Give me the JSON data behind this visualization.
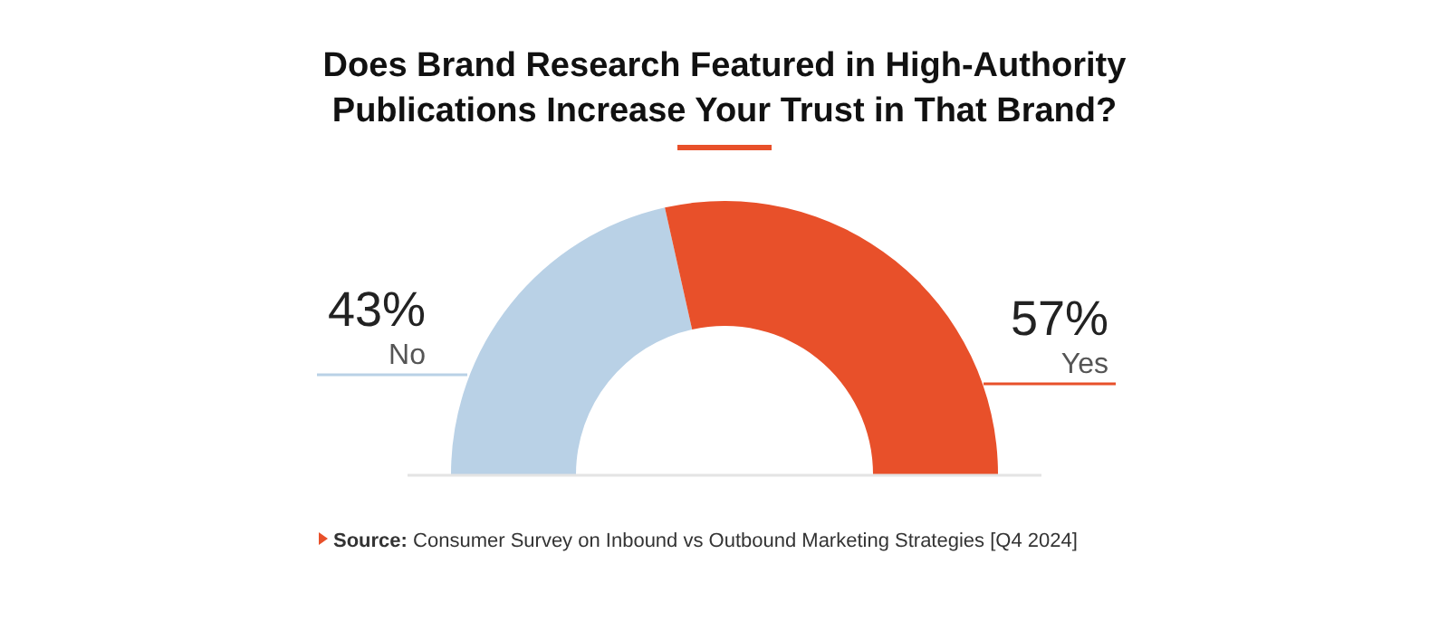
{
  "chart_data": {
    "type": "donut",
    "title": "Does Brand Research Featured in High-Authority Publications Increase Your Trust in That Brand?",
    "categories": [
      "No",
      "Yes"
    ],
    "values": [
      43,
      57
    ],
    "colors": [
      "#b9d1e6",
      "#e8502a"
    ],
    "value_labels": [
      "43%",
      "57%"
    ],
    "annotations": [
      "Source: Consumer Survey on Inbound vs Outbound Marketing Strategies [Q4 2024]"
    ]
  }
}
